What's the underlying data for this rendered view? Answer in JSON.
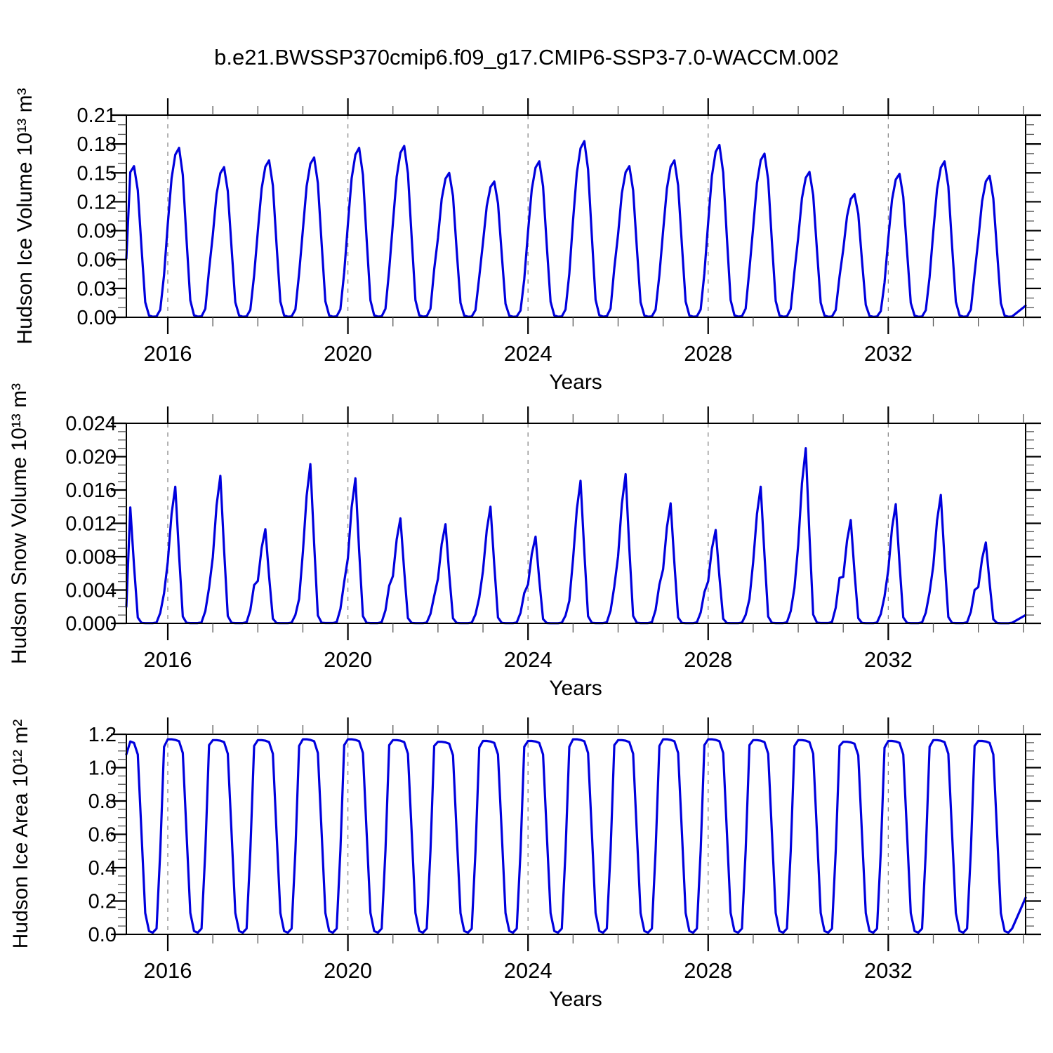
{
  "title": "b.e21.BWSSP370cmip6.f09_g17.CMIP6-SSP3-7.0-WACCM.002",
  "chart_data": [
    {
      "type": "line",
      "name": "hudson-ice-volume",
      "ylabel": "Hudson Ice Volume 10¹³ m³",
      "xlabel": "Years",
      "line_color": "#0000dd",
      "grid_color": "#888888",
      "xlim": [
        2015.08,
        2035.05
      ],
      "ylim": [
        0,
        0.21
      ],
      "xticks_major": [
        2016,
        2020,
        2024,
        2028,
        2032
      ],
      "xtick_minor_step_years": 1,
      "ytick_step": 0.03,
      "ytick_minor": 0.01,
      "ytick_labels": [
        "0.00",
        "0.03",
        "0.06",
        "0.09",
        "0.12",
        "0.15",
        "0.18",
        "0.21"
      ],
      "years": [
        2015,
        2016,
        2017,
        2018,
        2019,
        2020,
        2021,
        2022,
        2023,
        2024,
        2025,
        2026,
        2027,
        2028,
        2029,
        2030,
        2031,
        2032,
        2033,
        2034
      ],
      "annual_peaks": [
        0.157,
        0.176,
        0.156,
        0.163,
        0.166,
        0.176,
        0.178,
        0.15,
        0.141,
        0.162,
        0.183,
        0.157,
        0.163,
        0.179,
        0.17,
        0.151,
        0.128,
        0.149,
        0.162,
        0.147
      ],
      "monthly_shape": [
        0.55,
        0.82,
        0.96,
        1.0,
        0.84,
        0.46,
        0.1,
        0.012,
        0.004,
        0.006,
        0.05,
        0.28
      ],
      "start_value": 0.061,
      "end_value": 0.012
    },
    {
      "type": "line",
      "name": "hudson-snow-volume",
      "ylabel": "Hudson Snow Volume 10¹³ m³",
      "xlabel": "Years",
      "line_color": "#0000dd",
      "grid_color": "#888888",
      "xlim": [
        2015.08,
        2035.05
      ],
      "ylim": [
        0,
        0.024
      ],
      "xticks_major": [
        2016,
        2020,
        2024,
        2028,
        2032
      ],
      "xtick_minor_step_years": 1,
      "ytick_step": 0.004,
      "ytick_minor": 0.001,
      "ytick_labels": [
        "0.000",
        "0.004",
        "0.008",
        "0.012",
        "0.016",
        "0.020",
        "0.024"
      ],
      "years": [
        2015,
        2016,
        2017,
        2018,
        2019,
        2020,
        2021,
        2022,
        2023,
        2024,
        2025,
        2026,
        2027,
        2028,
        2029,
        2030,
        2031,
        2032,
        2033,
        2034
      ],
      "annual_peaks": [
        0.0139,
        0.0164,
        0.0177,
        0.0113,
        0.0191,
        0.0174,
        0.0126,
        0.0119,
        0.014,
        0.0104,
        0.0171,
        0.0179,
        0.0144,
        0.0112,
        0.0164,
        0.021,
        0.0124,
        0.0143,
        0.0154,
        0.0097
      ],
      "monthly_shape": [
        0.45,
        0.8,
        1.0,
        0.5,
        0.05,
        0.004,
        0.002,
        0.002,
        0.002,
        0.008,
        0.09,
        0.26
      ],
      "start_value": 0.002,
      "end_value": 0.001
    },
    {
      "type": "line",
      "name": "hudson-ice-area",
      "ylabel": "Hudson Ice Area 10¹² m²",
      "xlabel": "Years",
      "line_color": "#0000dd",
      "grid_color": "#888888",
      "xlim": [
        2015.08,
        2035.05
      ],
      "ylim": [
        0,
        1.2
      ],
      "xticks_major": [
        2016,
        2020,
        2024,
        2028,
        2032
      ],
      "xtick_minor_step_years": 1,
      "ytick_step": 0.2,
      "ytick_minor": 0.05,
      "ytick_labels": [
        "0.0",
        "0.2",
        "0.4",
        "0.6",
        "0.8",
        "1.0",
        "1.2"
      ],
      "years": [
        2015,
        2016,
        2017,
        2018,
        2019,
        2020,
        2021,
        2022,
        2023,
        2024,
        2025,
        2026,
        2027,
        2028,
        2029,
        2030,
        2031,
        2032,
        2033,
        2034
      ],
      "annual_peaks": [
        1.16,
        1.17,
        1.165,
        1.165,
        1.17,
        1.17,
        1.165,
        1.155,
        1.16,
        1.16,
        1.17,
        1.165,
        1.17,
        1.17,
        1.165,
        1.165,
        1.155,
        1.16,
        1.165,
        1.16
      ],
      "monthly_shape": [
        1.0,
        1.0,
        0.997,
        0.99,
        0.93,
        0.52,
        0.11,
        0.017,
        0.009,
        0.03,
        0.43,
        0.97
      ],
      "start_value": 1.08,
      "end_value": 0.22
    }
  ]
}
